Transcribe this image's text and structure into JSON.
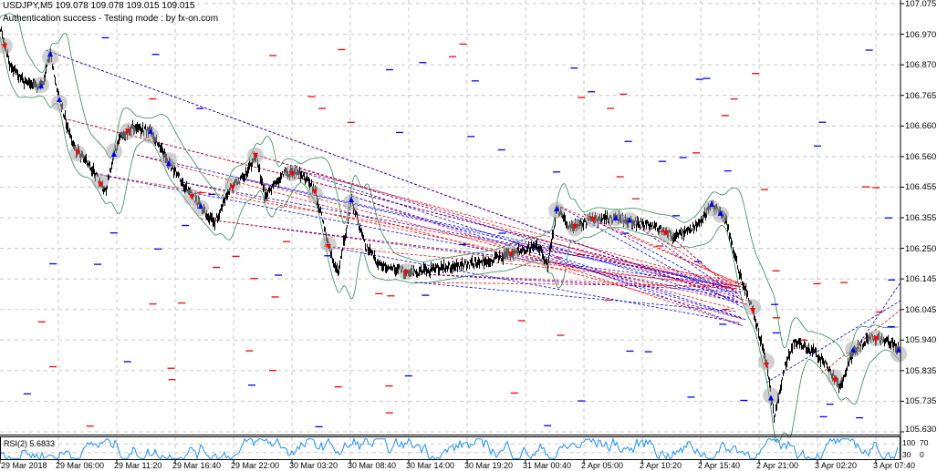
{
  "header": {
    "symbol_line": "USDJPY,M5  109.078 109.078 109.015 109.015",
    "status_line": "Authentication success - Testing mode : by fx-on.com"
  },
  "colors": {
    "price": "#000000",
    "bands": "#2e8b57",
    "buy": "#0000ff",
    "sell": "#ff0000",
    "rsi": "#1e90ff",
    "grid": "#c8c8c8",
    "circle": "#a9a9a9"
  },
  "chart_data": [
    {
      "type": "line",
      "title": "USDJPY,M5",
      "ylim": [
        105.63,
        107.075
      ],
      "grid": true,
      "x_unit": "M5 bar index",
      "y_ticks": [
        "107.075",
        "106.970",
        "106.870",
        "106.765",
        "106.660",
        "106.560",
        "106.455",
        "106.355",
        "106.250",
        "106.145",
        "106.045",
        "105.940",
        "105.835",
        "105.735",
        "105.630"
      ],
      "x_ticks": [
        "29 Mar 2018",
        "29 Mar 06:00",
        "29 Mar 11:20",
        "29 Mar 16:40",
        "29 Mar 22:00",
        "30 Mar 03:20",
        "30 Mar 08:40",
        "30 Mar 14:00",
        "30 Mar 19:20",
        "31 Mar 00:40",
        "2 Apr 05:00",
        "2 Apr 10:20",
        "2 Apr 15:40",
        "2 Apr 21:00",
        "3 Apr 02:20",
        "3 Apr 07:40"
      ],
      "series": [
        {
          "x": [
            0,
            10,
            25,
            45,
            55,
            65,
            80,
            100,
            115,
            130,
            145,
            165,
            185,
            210,
            235,
            250,
            270,
            280,
            290,
            310,
            330,
            345,
            360,
            370,
            385,
            400,
            415,
            430,
            450,
            480,
            510,
            540,
            570,
            590,
            600,
            610,
            625,
            650,
            680,
            700,
            720,
            740,
            760,
            780,
            795,
            810,
            825,
            840,
            848,
            860,
            870,
            890,
            905,
            920,
            935,
            955,
            975,
            985
          ],
          "y": [
            106.995,
            106.872,
            106.811,
            106.795,
            106.903,
            106.749,
            106.595,
            106.519,
            106.442,
            106.626,
            106.657,
            106.642,
            106.534,
            106.426,
            106.334,
            106.442,
            106.503,
            106.565,
            106.426,
            106.503,
            106.503,
            106.442,
            106.257,
            106.165,
            106.411,
            106.257,
            106.196,
            106.181,
            106.165,
            106.181,
            106.196,
            106.211,
            106.242,
            106.257,
            106.196,
            106.38,
            106.319,
            106.35,
            106.35,
            106.334,
            106.319,
            106.288,
            106.319,
            106.396,
            106.35,
            106.165,
            106.042,
            105.858,
            105.673,
            105.858,
            105.935,
            105.904,
            105.858,
            105.781,
            105.904,
            105.95,
            105.935,
            105.904
          ]
        }
      ]
    },
    {
      "type": "line",
      "title": "RSI(2) 5.6833",
      "ylim": [
        0,
        100
      ],
      "y_ticks": [
        "100",
        "70",
        "30",
        "0"
      ]
    }
  ]
}
